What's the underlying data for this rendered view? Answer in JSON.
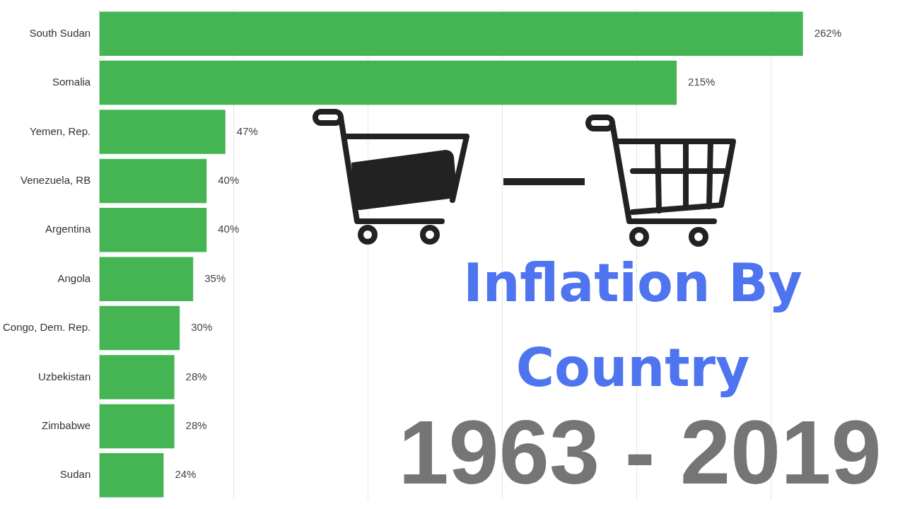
{
  "chart_data": {
    "type": "bar",
    "orientation": "horizontal",
    "title": "Inflation By Country",
    "subtitle": "1963 - 2019",
    "categories": [
      "South Sudan",
      "Somalia",
      "Yemen, Rep.",
      "Venezuela, RB",
      "Argentina",
      "Angola",
      "Congo, Dem. Rep.",
      "Uzbekistan",
      "Zimbabwe",
      "Sudan"
    ],
    "values": [
      262,
      215,
      47,
      40,
      40,
      35,
      30,
      28,
      28,
      24
    ],
    "value_labels": [
      "262%",
      "215%",
      "47%",
      "40%",
      "40%",
      "35%",
      "30%",
      "28%",
      "28%",
      "24%"
    ],
    "color": "#45b553",
    "xticks": [
      {
        "value": 0,
        "label": null
      },
      {
        "value": 50,
        "label": null
      },
      {
        "value": 100,
        "label": null
      },
      {
        "value": 150,
        "label": null
      },
      {
        "value": 200,
        "label": null
      },
      {
        "value": 250,
        "label": null
      }
    ],
    "grid": "x",
    "tick_labels": "y"
  }
}
